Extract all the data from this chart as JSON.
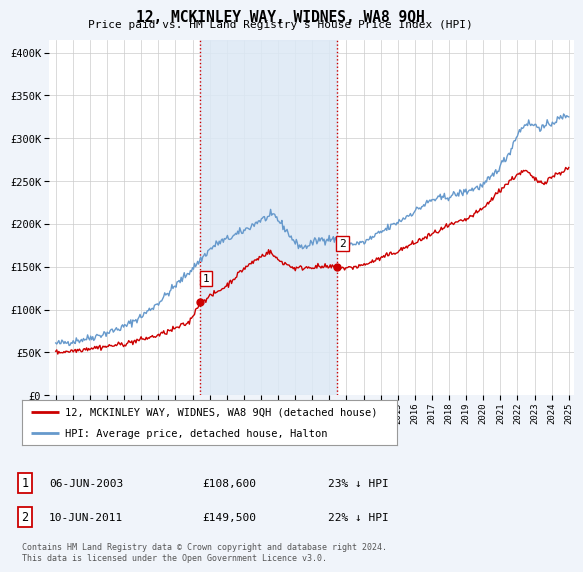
{
  "title": "12, MCKINLEY WAY, WIDNES, WA8 9QH",
  "subtitle": "Price paid vs. HM Land Registry's House Price Index (HPI)",
  "ytick_values": [
    0,
    50000,
    100000,
    150000,
    200000,
    250000,
    300000,
    350000,
    400000
  ],
  "ylim": [
    0,
    415000
  ],
  "transaction1": {
    "date": "06-JUN-2003",
    "price": 108600,
    "pct": "23%"
  },
  "transaction2": {
    "date": "10-JUN-2011",
    "price": 149500,
    "pct": "22%"
  },
  "legend_line1": "12, MCKINLEY WAY, WIDNES, WA8 9QH (detached house)",
  "legend_line2": "HPI: Average price, detached house, Halton",
  "footer": "Contains HM Land Registry data © Crown copyright and database right 2024.\nThis data is licensed under the Open Government Licence v3.0.",
  "bg_color": "#f0f4fa",
  "plot_bg_color": "#ffffff",
  "grid_color": "#cccccc",
  "hpi_color": "#6699cc",
  "price_color": "#cc0000",
  "shade_color": "#dce8f5",
  "vline_color": "#cc0000",
  "marker1_x_year": 2003.43,
  "marker2_x_year": 2011.43,
  "xlim_left": 1994.6,
  "xlim_right": 2025.3
}
